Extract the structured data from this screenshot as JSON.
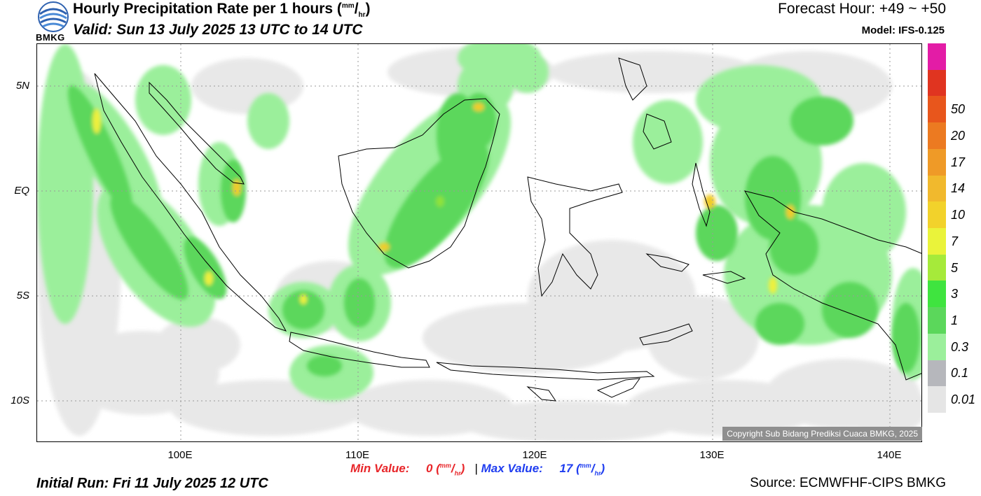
{
  "header": {
    "logo_text": "BMKG",
    "title": "Hourly Precipitation Rate per 1 hours (",
    "title_unit_top": "mm",
    "title_unit_bottom": "hr",
    "title_close": ")",
    "valid": "Valid: Sun 13 July 2025 13 UTC to 14 UTC",
    "forecast_hour": "Forecast Hour: +49 ~ +50",
    "model": "Model: IFS-0.125"
  },
  "map": {
    "lat_labels": [
      "5N",
      "EQ",
      "5S",
      "10S"
    ],
    "lon_labels": [
      "100E",
      "110E",
      "120E",
      "130E",
      "140E"
    ],
    "copyright": "Copyright Sub Bidang Prediksi Cuaca BMKG, 2025",
    "field_colors": {
      "0.01": "#e6e6e6",
      "0.3": "#9bef9b",
      "1": "#5bd75b",
      "3": "#8fe23a",
      "5": "#eef03c",
      "7": "#f0cc2c",
      "coast": "#000000",
      "ocean": "#ffffff"
    }
  },
  "legend": {
    "colors": [
      "#e5e5e5",
      "#b6b7bc",
      "#9bef9b",
      "#5bd75b",
      "#3fe43f",
      "#a6ea3a",
      "#eaf33a",
      "#f2d22b",
      "#f1b92d",
      "#ef9a27",
      "#ec7a21",
      "#e8561c",
      "#e03420",
      "#e31ca6"
    ],
    "labels": [
      "0.01",
      "0.1",
      "0.3",
      "1",
      "3",
      "5",
      "7",
      "10",
      "14",
      "17",
      "20",
      "50"
    ]
  },
  "footer": {
    "min_label": "Min Value:",
    "min_value": "0",
    "max_label": "Max Value:",
    "max_value": "17",
    "unit_top": "mm",
    "unit_bottom": "hr",
    "separator": "|",
    "initial_run": "Initial Run: Fri 11 July 2025 12 UTC",
    "source": "Source: ECMWFHF-CIPS BMKG"
  }
}
